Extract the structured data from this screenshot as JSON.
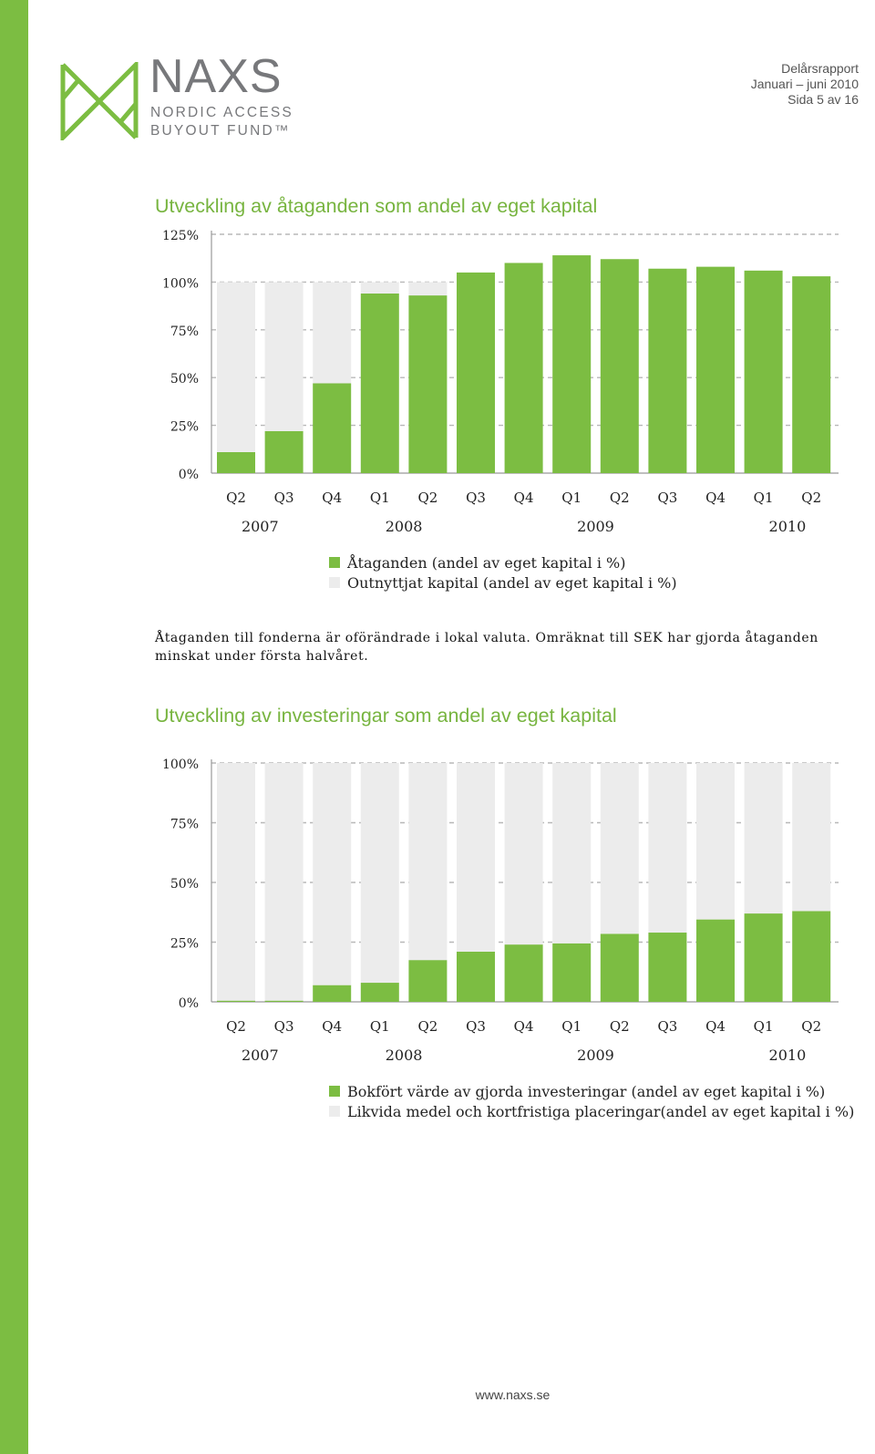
{
  "header": {
    "report_type": "Delårsrapport",
    "period": "Januari – juni 2010",
    "page": "Sida 5 av 16"
  },
  "logo": {
    "name": "NAXS",
    "line1": "NORDIC ACCESS",
    "line2": "BUYOUT FUND™",
    "color": "#7cbd42"
  },
  "sections": {
    "chart1_title": "Utveckling av åtaganden som andel av eget kapital",
    "body": "Åtaganden till fonderna är oförändrade i lokal valuta. Omräknat till SEK har gjorda åtaganden minskat under första halvåret.",
    "chart2_title": "Utveckling av investeringar som andel av eget kapital"
  },
  "footer": {
    "url": "www.naxs.se"
  },
  "colors": {
    "green": "#7cbd42",
    "grey": "#ececec"
  },
  "chart_data": [
    {
      "type": "bar",
      "stacked": true,
      "categories": [
        "Q2",
        "Q3",
        "Q4",
        "Q1",
        "Q2",
        "Q3",
        "Q4",
        "Q1",
        "Q2",
        "Q3",
        "Q4",
        "Q1",
        "Q2"
      ],
      "years": [
        {
          "label": "2007",
          "index": 0.5
        },
        {
          "label": "2008",
          "index": 3.5
        },
        {
          "label": "2009",
          "index": 7.5
        },
        {
          "label": "2010",
          "index": 11.5
        }
      ],
      "series": [
        {
          "name": "Åtaganden (andel av eget kapital i %)",
          "color": "#7cbd42",
          "values": [
            11,
            22,
            47,
            94,
            93,
            105,
            110,
            114,
            112,
            107,
            108,
            106,
            103
          ]
        },
        {
          "name": "Outnyttjat kapital (andel av eget kapital i %)",
          "color": "#ececec",
          "values": [
            89,
            78,
            53,
            6,
            7,
            0,
            0,
            0,
            0,
            0,
            0,
            0,
            0
          ]
        }
      ],
      "ylim": [
        0,
        125
      ],
      "yticks": [
        "0%",
        "25%",
        "50%",
        "75%",
        "100%",
        "125%"
      ],
      "ytick_values": [
        0,
        25,
        50,
        75,
        100,
        125
      ],
      "grid": true
    },
    {
      "type": "bar",
      "stacked": true,
      "categories": [
        "Q2",
        "Q3",
        "Q4",
        "Q1",
        "Q2",
        "Q3",
        "Q4",
        "Q1",
        "Q2",
        "Q3",
        "Q4",
        "Q1",
        "Q2"
      ],
      "years": [
        {
          "label": "2007",
          "index": 0.5
        },
        {
          "label": "2008",
          "index": 3.5
        },
        {
          "label": "2009",
          "index": 7.5
        },
        {
          "label": "2010",
          "index": 11.5
        }
      ],
      "series": [
        {
          "name": "Bokfört värde av gjorda investeringar (andel av eget kapital i %)",
          "color": "#7cbd42",
          "values": [
            0.5,
            0.5,
            7,
            8,
            17.5,
            21,
            24,
            24.5,
            28.5,
            29,
            34.5,
            37,
            38
          ]
        },
        {
          "name": "Likvida medel och kortfristiga placeringar(andel av eget kapital i %)",
          "color": "#ececec",
          "values": [
            99.5,
            99.5,
            93,
            92,
            82.5,
            79,
            76,
            75.5,
            71.5,
            71,
            65.5,
            63,
            62
          ]
        }
      ],
      "ylim": [
        0,
        100
      ],
      "yticks": [
        "0%",
        "25%",
        "50%",
        "75%",
        "100%"
      ],
      "ytick_values": [
        0,
        25,
        50,
        75,
        100
      ],
      "grid": true
    }
  ]
}
